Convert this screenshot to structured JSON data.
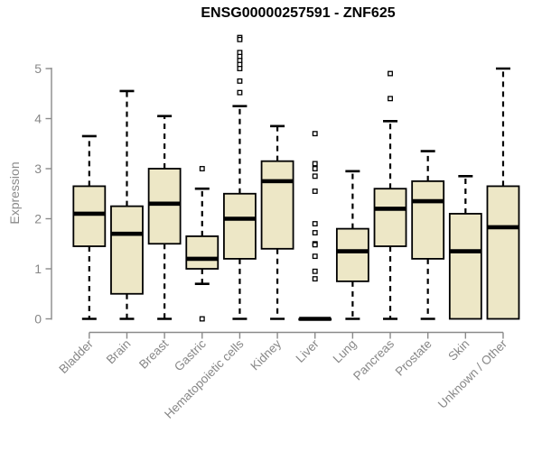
{
  "chart_data": {
    "type": "box",
    "title": "ENSG00000257591 - ZNF625",
    "ylabel": "Expression",
    "ylim": [
      0,
      5
    ],
    "yticks": [
      0,
      1,
      2,
      3,
      4,
      5
    ],
    "grid": false,
    "legend": null,
    "categories": [
      "Bladder",
      "Brain",
      "Breast",
      "Gastric",
      "Hematopoietic cells",
      "Kidney",
      "Liver",
      "Lung",
      "Pancreas",
      "Prostate",
      "Skin",
      "Unknown / Other"
    ],
    "series": [
      {
        "category": "Bladder",
        "low": 0,
        "q1": 1.45,
        "median": 2.1,
        "q3": 2.65,
        "high": 3.65,
        "outliers": []
      },
      {
        "category": "Brain",
        "low": 0,
        "q1": 0.5,
        "median": 1.7,
        "q3": 2.25,
        "high": 4.55,
        "outliers": []
      },
      {
        "category": "Breast",
        "low": 0,
        "q1": 1.5,
        "median": 2.3,
        "q3": 3.0,
        "high": 4.05,
        "outliers": []
      },
      {
        "category": "Gastric",
        "low": 0.7,
        "q1": 1.0,
        "median": 1.2,
        "q3": 1.65,
        "high": 2.6,
        "outliers": [
          3.0,
          0
        ]
      },
      {
        "category": "Hematopoietic cells",
        "low": 0,
        "q1": 1.2,
        "median": 2.0,
        "q3": 2.5,
        "high": 4.25,
        "outliers": [
          5.62,
          5.58,
          5.32,
          5.24,
          5.16,
          5.08,
          5.0,
          4.75,
          4.52
        ]
      },
      {
        "category": "Kidney",
        "low": 0,
        "q1": 1.4,
        "median": 2.75,
        "q3": 3.15,
        "high": 3.85,
        "outliers": []
      },
      {
        "category": "Liver",
        "low": 0,
        "q1": 0,
        "median": 0,
        "q3": 0,
        "high": 0,
        "outliers": [
          3.7,
          3.1,
          3.0,
          2.85,
          2.55,
          1.9,
          1.72,
          1.5,
          1.48,
          1.25,
          0.95,
          0.8
        ]
      },
      {
        "category": "Lung",
        "low": 0,
        "q1": 0.75,
        "median": 1.35,
        "q3": 1.8,
        "high": 2.95,
        "outliers": []
      },
      {
        "category": "Pancreas",
        "low": 0,
        "q1": 1.45,
        "median": 2.2,
        "q3": 2.6,
        "high": 3.95,
        "outliers": [
          4.9,
          4.4
        ]
      },
      {
        "category": "Prostate",
        "low": 0,
        "q1": 1.2,
        "median": 2.35,
        "q3": 2.75,
        "high": 3.35,
        "outliers": []
      },
      {
        "category": "Skin",
        "low": 0,
        "q1": 0,
        "median": 1.35,
        "q3": 2.1,
        "high": 2.85,
        "outliers": []
      },
      {
        "category": "Unknown / Other",
        "low": 0,
        "q1": 0,
        "median": 1.83,
        "q3": 2.65,
        "high": 5.0,
        "outliers": []
      }
    ],
    "colors": {
      "box_fill": "#EDE7C6",
      "box_stroke": "#000000",
      "median": "#000000",
      "whisker": "#000000",
      "outlier_fill": "#ffffff",
      "axis": "#8A8A8A",
      "tick_label": "#878787",
      "title": "#000000",
      "background": "#ffffff"
    }
  }
}
